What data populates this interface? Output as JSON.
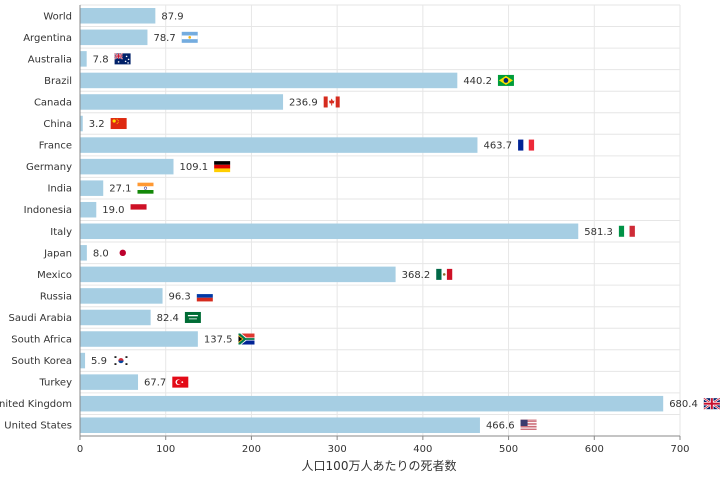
{
  "chart_data": {
    "type": "bar",
    "orientation": "horizontal",
    "categories": [
      "World",
      "Argentina",
      "Australia",
      "Brazil",
      "Canada",
      "China",
      "France",
      "Germany",
      "India",
      "Indonesia",
      "Italy",
      "Japan",
      "Mexico",
      "Russia",
      "Saudi Arabia",
      "South Africa",
      "South Korea",
      "Turkey",
      "United Kingdom",
      "United States"
    ],
    "values": [
      87.9,
      78.7,
      7.8,
      440.2,
      236.9,
      3.2,
      463.7,
      109.1,
      27.1,
      19.0,
      581.3,
      8.0,
      368.2,
      96.3,
      82.4,
      137.5,
      5.9,
      67.7,
      680.4,
      466.6
    ],
    "value_labels": [
      "87.9",
      "78.7",
      "7.8",
      "440.2",
      "236.9",
      "3.2",
      "463.7",
      "109.1",
      "27.1",
      "19.0",
      "581.3",
      "8.0",
      "368.2",
      "96.3",
      "82.4",
      "137.5",
      "5.9",
      "67.7",
      "680.4",
      "466.6"
    ],
    "flags": [
      "none",
      "argentina-flag-icon",
      "australia-flag-icon",
      "brazil-flag-icon",
      "canada-flag-icon",
      "china-flag-icon",
      "france-flag-icon",
      "germany-flag-icon",
      "india-flag-icon",
      "indonesia-flag-icon",
      "italy-flag-icon",
      "japan-flag-icon",
      "mexico-flag-icon",
      "russia-flag-icon",
      "saudi-arabia-flag-icon",
      "south-africa-flag-icon",
      "south-korea-flag-icon",
      "turkey-flag-icon",
      "united-kingdom-flag-icon",
      "united-states-flag-icon"
    ],
    "xlabel": "人口100万人あたりの死者数",
    "xlim": [
      0,
      700
    ],
    "xticks": [
      0,
      100,
      200,
      300,
      400,
      500,
      600,
      700
    ],
    "grid": true,
    "bar_color": "#a6cee3",
    "grid_color": "#e6e6e6",
    "axis_color": "#888888"
  }
}
